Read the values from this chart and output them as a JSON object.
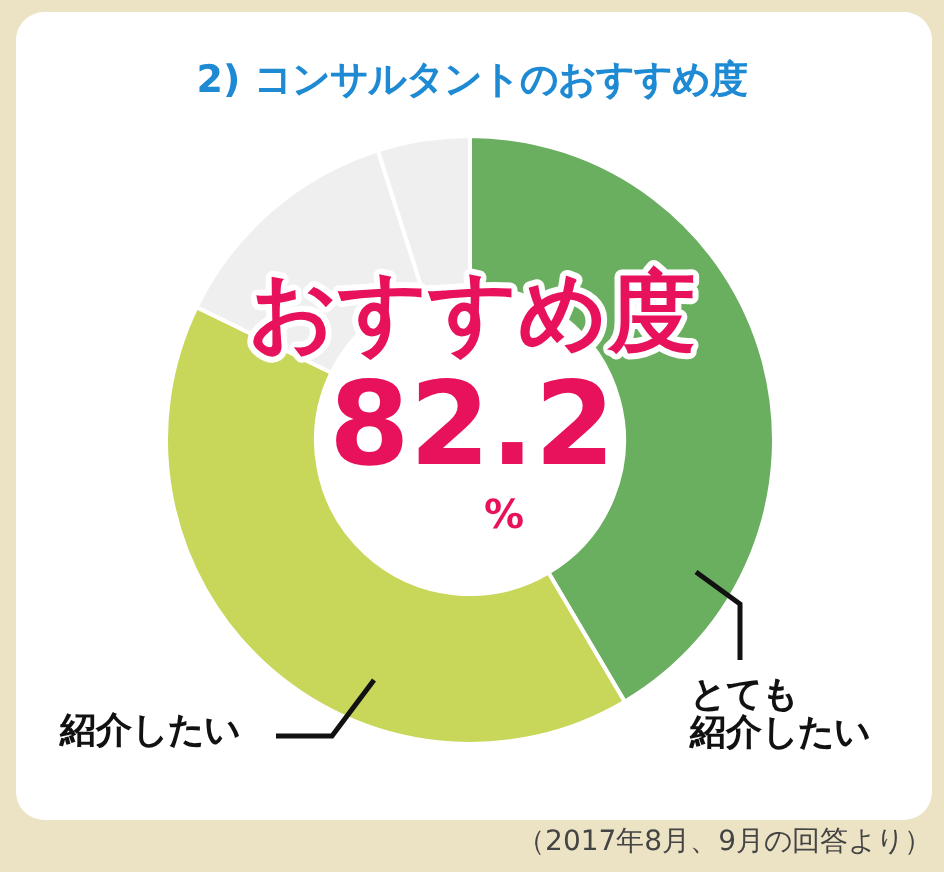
{
  "chart_data": {
    "type": "donut",
    "title": "2) コンサルタントのおすすめ度",
    "categories": [
      "とても紹介したい",
      "紹介したい",
      null,
      null
    ],
    "values": [
      41.5,
      40.7,
      12.9,
      4.9
    ],
    "colors": [
      "#6aae60",
      "#c8d65a",
      "#efefef",
      "#efefef"
    ],
    "annotations": [
      "おすすめ度",
      "82.2",
      "%",
      "（2017年8月、9月の回答より）"
    ]
  }
}
